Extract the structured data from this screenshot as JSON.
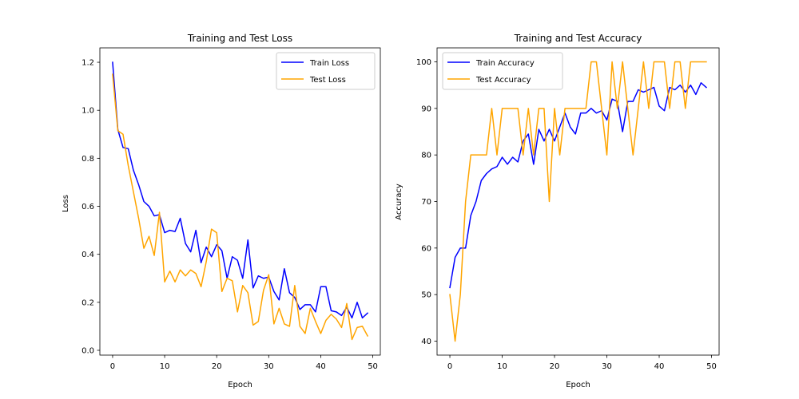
{
  "chart_data": [
    {
      "type": "line",
      "title": "Training and Test Loss",
      "xlabel": "Epoch",
      "ylabel": "Loss",
      "xlim": [
        -2.45,
        51.45
      ],
      "ylim": [
        -0.02,
        1.26
      ],
      "xticks": [
        0,
        10,
        20,
        30,
        40,
        50
      ],
      "yticks": [
        0.0,
        0.2,
        0.4,
        0.6,
        0.8,
        1.0,
        1.2
      ],
      "ytick_decimals": 1,
      "legend_position": "top-right",
      "grid": false,
      "x": [
        0,
        1,
        2,
        3,
        4,
        5,
        6,
        7,
        8,
        9,
        10,
        11,
        12,
        13,
        14,
        15,
        16,
        17,
        18,
        19,
        20,
        21,
        22,
        23,
        24,
        25,
        26,
        27,
        28,
        29,
        30,
        31,
        32,
        33,
        34,
        35,
        36,
        37,
        38,
        39,
        40,
        41,
        42,
        43,
        44,
        45,
        46,
        47,
        48,
        49
      ],
      "series": [
        {
          "name": "Train Loss",
          "color": "#0000ff",
          "values": [
            1.2,
            0.92,
            0.845,
            0.84,
            0.75,
            0.69,
            0.62,
            0.6,
            0.56,
            0.565,
            0.49,
            0.5,
            0.495,
            0.55,
            0.445,
            0.41,
            0.5,
            0.365,
            0.43,
            0.39,
            0.44,
            0.415,
            0.3,
            0.39,
            0.375,
            0.3,
            0.46,
            0.26,
            0.31,
            0.3,
            0.305,
            0.245,
            0.21,
            0.34,
            0.24,
            0.22,
            0.17,
            0.19,
            0.19,
            0.16,
            0.265,
            0.265,
            0.165,
            0.16,
            0.145,
            0.18,
            0.135,
            0.2,
            0.135,
            0.155
          ]
        },
        {
          "name": "Test Loss",
          "color": "#ffa500",
          "values": [
            1.15,
            0.915,
            0.9,
            0.77,
            0.66,
            0.55,
            0.425,
            0.475,
            0.395,
            0.575,
            0.285,
            0.33,
            0.285,
            0.335,
            0.31,
            0.335,
            0.32,
            0.265,
            0.37,
            0.505,
            0.49,
            0.245,
            0.3,
            0.29,
            0.16,
            0.27,
            0.24,
            0.105,
            0.12,
            0.25,
            0.315,
            0.11,
            0.175,
            0.11,
            0.1,
            0.27,
            0.1,
            0.07,
            0.175,
            0.12,
            0.07,
            0.125,
            0.15,
            0.13,
            0.095,
            0.195,
            0.045,
            0.095,
            0.1,
            0.06
          ]
        }
      ]
    },
    {
      "type": "line",
      "title": "Training and Test Accuracy",
      "xlabel": "Epoch",
      "ylabel": "Accuracy",
      "xlim": [
        -2.45,
        51.45
      ],
      "ylim": [
        37,
        103
      ],
      "xticks": [
        0,
        10,
        20,
        30,
        40,
        50
      ],
      "yticks": [
        40,
        50,
        60,
        70,
        80,
        90,
        100
      ],
      "ytick_decimals": 0,
      "legend_position": "top-left",
      "grid": false,
      "x": [
        0,
        1,
        2,
        3,
        4,
        5,
        6,
        7,
        8,
        9,
        10,
        11,
        12,
        13,
        14,
        15,
        16,
        17,
        18,
        19,
        20,
        21,
        22,
        23,
        24,
        25,
        26,
        27,
        28,
        29,
        30,
        31,
        32,
        33,
        34,
        35,
        36,
        37,
        38,
        39,
        40,
        41,
        42,
        43,
        44,
        45,
        46,
        47,
        48,
        49
      ],
      "series": [
        {
          "name": "Train Accuracy",
          "color": "#0000ff",
          "values": [
            51.5,
            58,
            60,
            60,
            67,
            70,
            74.5,
            76,
            77,
            77.5,
            79.5,
            78,
            79.5,
            78.5,
            83,
            84.5,
            78,
            85.5,
            83,
            85.5,
            83,
            86,
            89,
            86,
            84.5,
            89,
            89,
            90,
            89,
            89.5,
            87.5,
            92,
            91.5,
            85,
            91.5,
            91.5,
            94,
            93.5,
            94,
            94.5,
            90.5,
            89.5,
            94.5,
            94,
            95,
            93.5,
            95,
            93,
            95.5,
            94.5
          ]
        },
        {
          "name": "Test Accuracy",
          "color": "#ffa500",
          "values": [
            50,
            40,
            50,
            70,
            80,
            80,
            80,
            80,
            90,
            80,
            90,
            90,
            90,
            90,
            80,
            90,
            80,
            90,
            90,
            70,
            90,
            80,
            90,
            90,
            90,
            90,
            90,
            100,
            100,
            90,
            80,
            100,
            90,
            100,
            90,
            80,
            90,
            100,
            90,
            100,
            100,
            100,
            90,
            100,
            100,
            90,
            100,
            100,
            100,
            100
          ]
        }
      ]
    }
  ]
}
